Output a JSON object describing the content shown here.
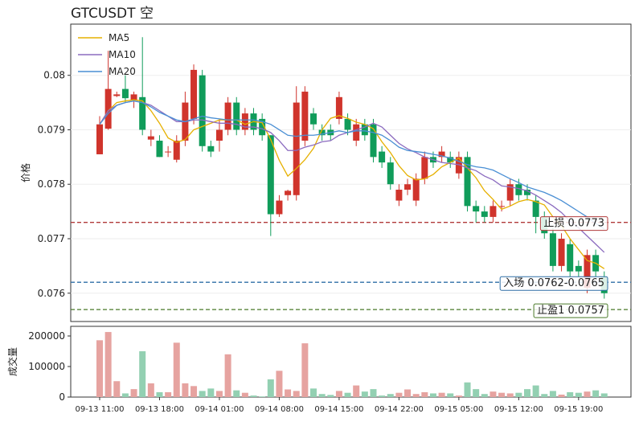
{
  "chart_data": [
    {
      "type": "candlestick",
      "title": "GTCUSDT  空",
      "ylabel": "价格",
      "ylim": [
        0.07548,
        0.08094
      ],
      "yticks": [
        0.076,
        0.077,
        0.078,
        0.079,
        0.08
      ],
      "up_color": "#d0342c",
      "down_color": "#109c5a",
      "legend": "upper left",
      "open": [
        0.07855,
        0.07902,
        0.07962,
        0.07975,
        0.07955,
        0.0796,
        0.07882,
        0.0788,
        0.0786,
        0.07845,
        0.0788,
        0.0792,
        0.08,
        0.0787,
        0.0788,
        0.079,
        0.0795,
        0.079,
        0.0793,
        0.0792,
        0.0789,
        0.07745,
        0.0778,
        0.0778,
        0.0788,
        0.0793,
        0.079,
        0.079,
        0.0792,
        0.0792,
        0.0788,
        0.0791,
        0.0791,
        0.0786,
        0.0784,
        0.0777,
        0.0779,
        0.0777,
        0.0781,
        0.0785,
        0.0785,
        0.0785,
        0.0782,
        0.0785,
        0.0776,
        0.0775,
        0.0774,
        0.0776,
        0.0777,
        0.078,
        0.0779,
        0.0777,
        0.0774,
        0.0771,
        0.0765,
        0.0769,
        0.0765,
        0.0761,
        0.0767,
        0.0763
      ],
      "high": [
        0.07925,
        0.08045,
        0.0797,
        0.08,
        0.0797,
        0.0807,
        0.079,
        0.0789,
        0.0787,
        0.0789,
        0.0797,
        0.0802,
        0.0801,
        0.0788,
        0.0792,
        0.0796,
        0.0796,
        0.0794,
        0.0794,
        0.0793,
        0.0789,
        0.0778,
        0.0779,
        0.0798,
        0.0798,
        0.0794,
        0.0791,
        0.0791,
        0.0797,
        0.0793,
        0.0792,
        0.0792,
        0.0792,
        0.0787,
        0.0785,
        0.078,
        0.0781,
        0.0782,
        0.0786,
        0.0786,
        0.0787,
        0.0786,
        0.0786,
        0.0786,
        0.0777,
        0.0776,
        0.0777,
        0.0777,
        0.0781,
        0.0781,
        0.078,
        0.0778,
        0.0775,
        0.0772,
        0.0771,
        0.077,
        0.0766,
        0.0768,
        0.0768,
        0.0764
      ],
      "low": [
        0.07855,
        0.079,
        0.0796,
        0.0795,
        0.0794,
        0.0789,
        0.0787,
        0.0785,
        0.0785,
        0.0784,
        0.0787,
        0.0791,
        0.0786,
        0.0785,
        0.0786,
        0.0789,
        0.0789,
        0.0789,
        0.0789,
        0.0788,
        0.07705,
        0.0774,
        0.0777,
        0.0777,
        0.0787,
        0.079,
        0.0788,
        0.0788,
        0.0791,
        0.0789,
        0.0787,
        0.0788,
        0.0784,
        0.0783,
        0.0779,
        0.0776,
        0.0778,
        0.0776,
        0.078,
        0.0783,
        0.0784,
        0.0783,
        0.0781,
        0.0775,
        0.0773,
        0.0773,
        0.0773,
        0.0775,
        0.0776,
        0.0777,
        0.0777,
        0.0771,
        0.077,
        0.0764,
        0.0764,
        0.0763,
        0.0763,
        0.076,
        0.0763,
        0.0759
      ],
      "close": [
        0.0791,
        0.07975,
        0.07965,
        0.07958,
        0.07965,
        0.079,
        0.07888,
        0.0785,
        0.0786,
        0.0788,
        0.0795,
        0.0801,
        0.0787,
        0.0786,
        0.079,
        0.0795,
        0.079,
        0.0793,
        0.079,
        0.0789,
        0.07745,
        0.0777,
        0.07788,
        0.0795,
        0.0797,
        0.0791,
        0.0789,
        0.0789,
        0.0796,
        0.079,
        0.0791,
        0.0789,
        0.0785,
        0.0784,
        0.078,
        0.0779,
        0.078,
        0.0781,
        0.0785,
        0.0784,
        0.0786,
        0.0784,
        0.0785,
        0.0776,
        0.0775,
        0.0774,
        0.0776,
        0.0776,
        0.078,
        0.0778,
        0.0778,
        0.0774,
        0.0771,
        0.0765,
        0.077,
        0.0764,
        0.0764,
        0.0767,
        0.0764,
        0.076
      ],
      "series": [
        {
          "name": "MA5",
          "color": "#e6b000",
          "values": [
            0.0791,
            0.07935,
            0.0795,
            0.07953,
            0.07955,
            0.07953,
            0.07935,
            0.07912,
            0.07885,
            0.07877,
            0.07882,
            0.079,
            0.07906,
            0.07912,
            0.07918,
            0.07918,
            0.07918,
            0.0791,
            0.07915,
            0.07913,
            0.07882,
            0.07844,
            0.07815,
            0.07829,
            0.07845,
            0.07866,
            0.079,
            0.07921,
            0.07926,
            0.07921,
            0.07914,
            0.0791,
            0.07902,
            0.07878,
            0.07858,
            0.07834,
            0.07816,
            0.07808,
            0.0781,
            0.07818,
            0.07832,
            0.0784,
            0.07848,
            0.0783,
            0.07812,
            0.07788,
            0.07772,
            0.07754,
            0.0776,
            0.07768,
            0.07772,
            0.07768,
            0.07762,
            0.0774,
            0.07724,
            0.077,
            0.0768,
            0.0766,
            0.07655,
            0.07645
          ]
        },
        {
          "name": "MA10",
          "color": "#8b6bbf",
          "values": [
            0.0791,
            0.07935,
            0.07945,
            0.0795,
            0.07953,
            0.0795,
            0.07945,
            0.07935,
            0.07925,
            0.07915,
            0.07915,
            0.07918,
            0.07918,
            0.07915,
            0.07912,
            0.07912,
            0.0791,
            0.07905,
            0.07905,
            0.07902,
            0.07895,
            0.0788,
            0.07862,
            0.07862,
            0.07868,
            0.07872,
            0.07878,
            0.0788,
            0.0789,
            0.07895,
            0.079,
            0.07905,
            0.07912,
            0.07905,
            0.0789,
            0.07875,
            0.07865,
            0.07858,
            0.0785,
            0.07845,
            0.0784,
            0.07838,
            0.07836,
            0.0783,
            0.07825,
            0.07815,
            0.07808,
            0.07797,
            0.07795,
            0.07792,
            0.07788,
            0.0778,
            0.0777,
            0.0776,
            0.07748,
            0.07732,
            0.0772,
            0.07705,
            0.0769,
            0.07675
          ]
        },
        {
          "name": "MA20",
          "color": "#4a8fd4",
          "values": [
            0.0791,
            0.0793,
            0.07945,
            0.0795,
            0.07953,
            0.0795,
            0.07942,
            0.07932,
            0.07925,
            0.07918,
            0.07915,
            0.0792,
            0.07925,
            0.07922,
            0.0792,
            0.07918,
            0.07918,
            0.07918,
            0.07918,
            0.07915,
            0.0791,
            0.079,
            0.0789,
            0.07888,
            0.0789,
            0.0789,
            0.07892,
            0.07895,
            0.07898,
            0.07895,
            0.07898,
            0.07898,
            0.07895,
            0.0789,
            0.0788,
            0.07868,
            0.07862,
            0.0786,
            0.07858,
            0.07855,
            0.07852,
            0.07848,
            0.07842,
            0.07836,
            0.07832,
            0.0783,
            0.07826,
            0.07818,
            0.0781,
            0.07803,
            0.07795,
            0.0779,
            0.07785,
            0.07778,
            0.0777,
            0.0776,
            0.0775,
            0.0774,
            0.07728,
            0.07718
          ]
        }
      ],
      "annotations": [
        {
          "value": 0.0773,
          "label": "止损 0.0773",
          "color": "#b03a3a"
        },
        {
          "value": 0.0762,
          "label": "入场 0.0762-0.0765",
          "color": "#2e6ea6"
        },
        {
          "value": 0.0757,
          "label": "止盈1 0.0757",
          "color": "#4a7a28"
        }
      ]
    },
    {
      "type": "volume",
      "ylabel": "成交量",
      "ylim": [
        0,
        231600
      ],
      "yticks": [
        0,
        100000,
        200000
      ],
      "up_color": "#e6a3a0",
      "down_color": "#93d0b2",
      "categories": [
        "09-13 11:00",
        null,
        null,
        null,
        null,
        null,
        null,
        "09-13 18:00",
        null,
        null,
        null,
        null,
        null,
        null,
        "09-14 01:00",
        null,
        null,
        null,
        null,
        null,
        null,
        "09-14 08:00",
        null,
        null,
        null,
        null,
        null,
        null,
        "09-14 15:00",
        null,
        null,
        null,
        null,
        null,
        null,
        "09-14 22:00",
        null,
        null,
        null,
        null,
        null,
        null,
        "09-15 05:00",
        null,
        null,
        null,
        null,
        null,
        null,
        "09-15 12:00",
        null,
        null,
        null,
        null,
        null,
        null,
        "09-15 19:00",
        null,
        null,
        null
      ],
      "values": [
        186000,
        213000,
        52000,
        12000,
        26000,
        150000,
        45000,
        16000,
        16000,
        178000,
        45000,
        36000,
        20000,
        28000,
        20000,
        140000,
        22000,
        14000,
        5000,
        2000,
        58000,
        86000,
        25000,
        20000,
        176000,
        28000,
        10000,
        7000,
        20000,
        14000,
        38000,
        18000,
        26000,
        5000,
        10000,
        14000,
        25000,
        10000,
        16000,
        12000,
        14000,
        12000,
        5000,
        48000,
        26000,
        10000,
        18000,
        14000,
        12000,
        14000,
        26000,
        38000,
        10000,
        20000,
        8000,
        16000,
        14000,
        18000,
        22000,
        12000
      ]
    }
  ]
}
